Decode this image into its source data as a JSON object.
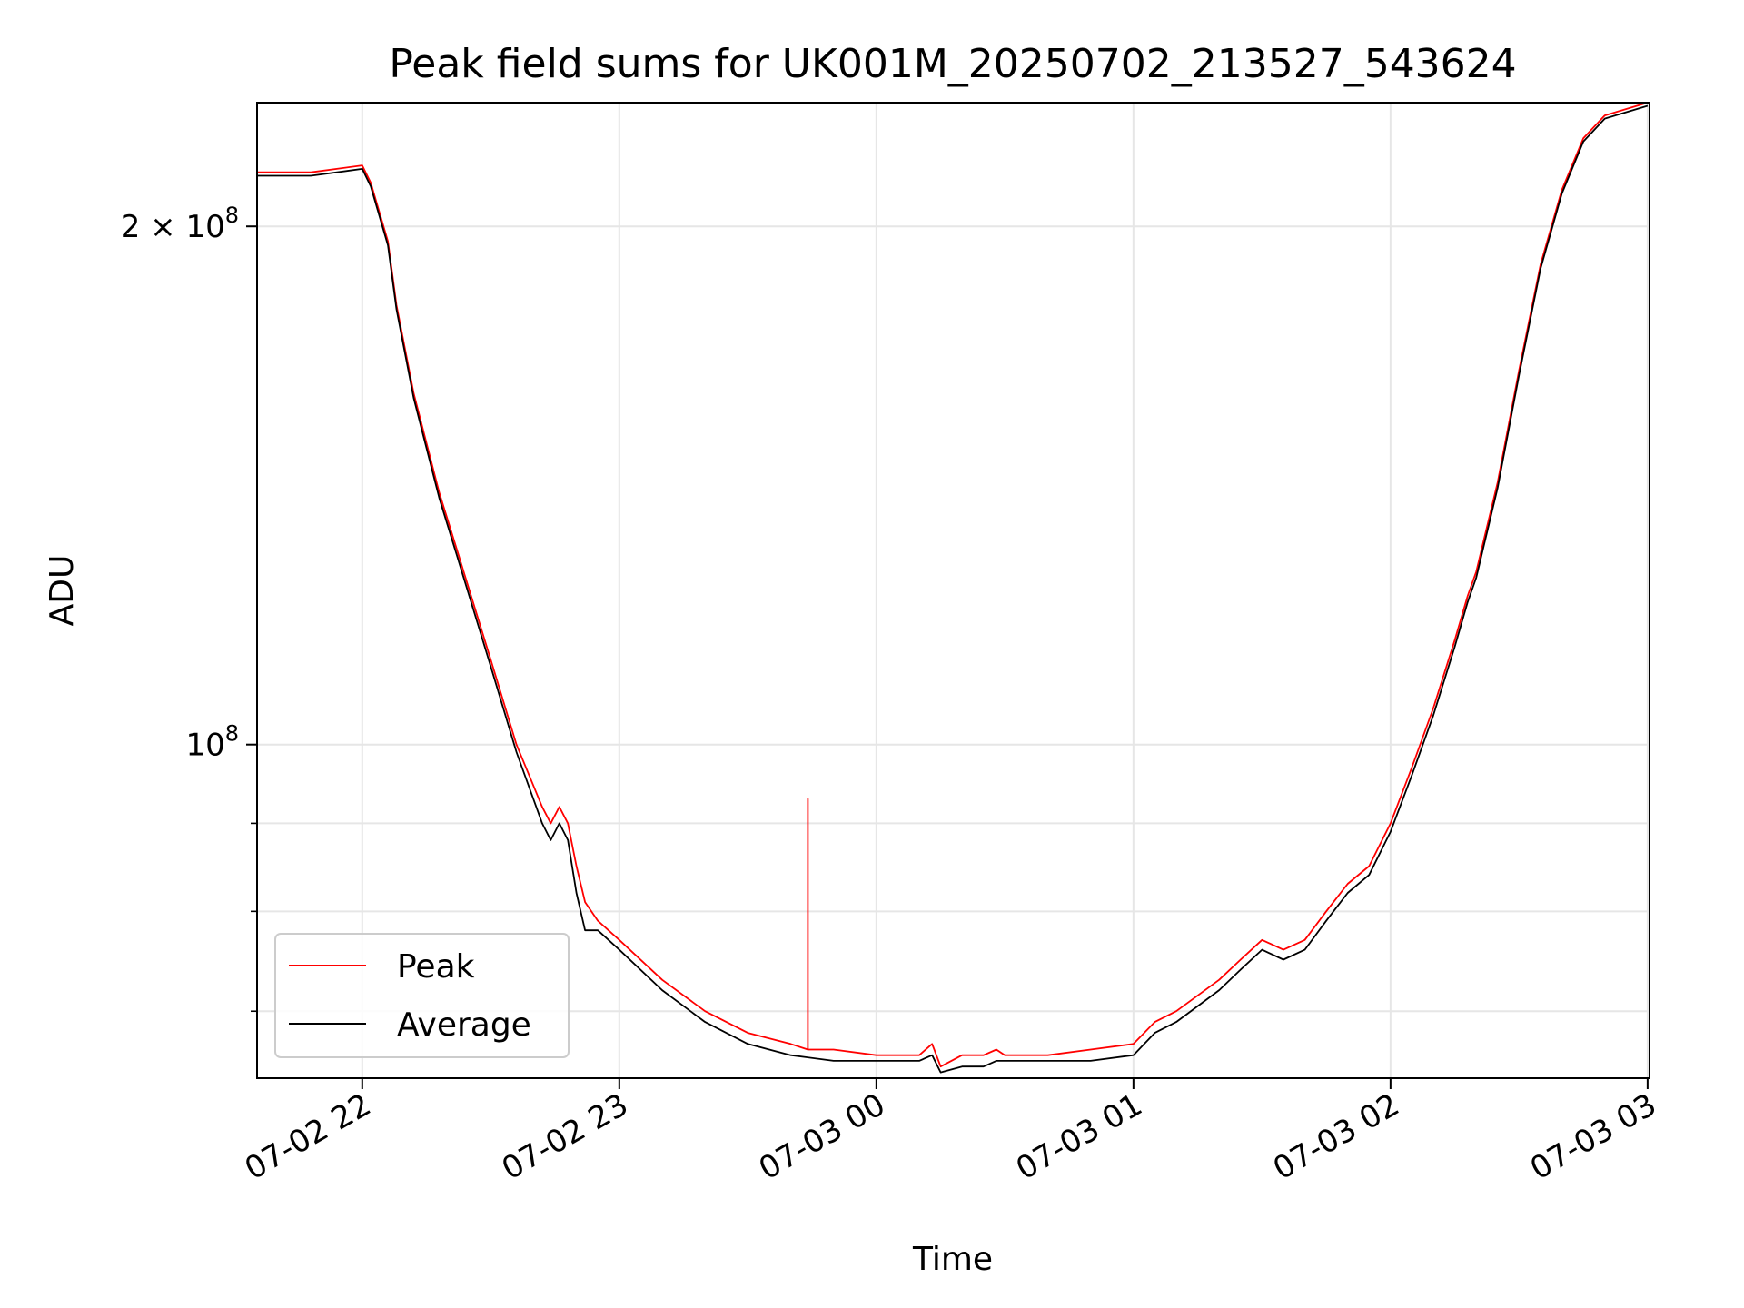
{
  "chart_data": {
    "type": "line",
    "title": "Peak field sums for UK001M_20250702_213527_543624",
    "xlabel": "Time",
    "ylabel": "ADU",
    "y_scale": "log",
    "xlim": [
      "2025-07-02 21:35:27",
      "2025-07-03 03:00:27"
    ],
    "ylim": [
      64000000,
      236000000
    ],
    "grid": true,
    "legend_position": "lower-left",
    "x_ticks": [
      {
        "time": "2025-07-02 22:00",
        "label": "07-02 22"
      },
      {
        "time": "2025-07-02 23:00",
        "label": "07-02 23"
      },
      {
        "time": "2025-07-03 00:00",
        "label": "07-03 00"
      },
      {
        "time": "2025-07-03 01:00",
        "label": "07-03 01"
      },
      {
        "time": "2025-07-03 02:00",
        "label": "07-03 02"
      },
      {
        "time": "2025-07-03 03:00",
        "label": "07-03 03"
      }
    ],
    "y_major_ticks": [
      {
        "value": 100000000,
        "label_base": "10",
        "label_exp": "8"
      },
      {
        "value": 200000000,
        "label_base": "2 × 10",
        "label_exp": "8"
      }
    ],
    "y_minor_ticks": [
      70000000,
      80000000,
      90000000
    ],
    "series": [
      {
        "name": "Peak",
        "color": "#ff0000",
        "x": [
          "2025-07-02 21:35",
          "2025-07-02 21:48",
          "2025-07-02 22:00",
          "2025-07-02 22:02",
          "2025-07-02 22:06",
          "2025-07-02 22:08",
          "2025-07-02 22:12",
          "2025-07-02 22:18",
          "2025-07-02 22:22",
          "2025-07-02 22:30",
          "2025-07-02 22:36",
          "2025-07-02 22:42",
          "2025-07-02 22:44",
          "2025-07-02 22:46",
          "2025-07-02 22:48",
          "2025-07-02 22:50",
          "2025-07-02 22:52",
          "2025-07-02 22:55",
          "2025-07-02 23:00",
          "2025-07-02 23:10",
          "2025-07-02 23:20",
          "2025-07-02 23:30",
          "2025-07-02 23:40",
          "2025-07-02 23:44",
          "2025-07-02 23:44",
          "2025-07-02 23:44",
          "2025-07-02 23:50",
          "2025-07-03 00:00",
          "2025-07-03 00:10",
          "2025-07-03 00:13",
          "2025-07-03 00:15",
          "2025-07-03 00:20",
          "2025-07-03 00:25",
          "2025-07-03 00:28",
          "2025-07-03 00:30",
          "2025-07-03 00:35",
          "2025-07-03 00:40",
          "2025-07-03 00:50",
          "2025-07-03 01:00",
          "2025-07-03 01:05",
          "2025-07-03 01:10",
          "2025-07-03 01:20",
          "2025-07-03 01:25",
          "2025-07-03 01:30",
          "2025-07-03 01:35",
          "2025-07-03 01:40",
          "2025-07-03 01:45",
          "2025-07-03 01:50",
          "2025-07-03 01:55",
          "2025-07-03 02:00",
          "2025-07-03 02:05",
          "2025-07-03 02:10",
          "2025-07-03 02:15",
          "2025-07-03 02:18",
          "2025-07-03 02:20",
          "2025-07-03 02:25",
          "2025-07-03 02:30",
          "2025-07-03 02:35",
          "2025-07-03 02:40",
          "2025-07-03 02:45",
          "2025-07-03 02:50",
          "2025-07-03 03:00"
        ],
        "y": [
          215000000,
          215000000,
          217000000,
          212000000,
          196000000,
          180000000,
          160000000,
          140000000,
          130000000,
          112000000,
          100000000,
          92000000,
          90000000,
          92000000,
          90000000,
          85000000,
          81000000,
          79000000,
          77000000,
          73000000,
          70000000,
          68000000,
          67000000,
          66500000,
          93000000,
          66500000,
          66500000,
          66000000,
          66000000,
          67000000,
          65000000,
          66000000,
          66000000,
          66500000,
          66000000,
          66000000,
          66000000,
          66500000,
          67000000,
          69000000,
          70000000,
          73000000,
          75000000,
          77000000,
          76000000,
          77000000,
          80000000,
          83000000,
          85000000,
          90000000,
          97000000,
          105000000,
          115000000,
          122000000,
          126000000,
          142000000,
          165000000,
          190000000,
          210000000,
          225000000,
          232000000,
          236000000
        ]
      },
      {
        "name": "Average",
        "color": "#000000",
        "x": [
          "2025-07-02 21:35",
          "2025-07-02 21:48",
          "2025-07-02 22:00",
          "2025-07-02 22:02",
          "2025-07-02 22:06",
          "2025-07-02 22:08",
          "2025-07-02 22:12",
          "2025-07-02 22:18",
          "2025-07-02 22:22",
          "2025-07-02 22:30",
          "2025-07-02 22:36",
          "2025-07-02 22:42",
          "2025-07-02 22:44",
          "2025-07-02 22:46",
          "2025-07-02 22:48",
          "2025-07-02 22:50",
          "2025-07-02 22:52",
          "2025-07-02 22:55",
          "2025-07-02 23:00",
          "2025-07-02 23:10",
          "2025-07-02 23:20",
          "2025-07-02 23:30",
          "2025-07-02 23:40",
          "2025-07-02 23:50",
          "2025-07-03 00:00",
          "2025-07-03 00:10",
          "2025-07-03 00:13",
          "2025-07-03 00:15",
          "2025-07-03 00:20",
          "2025-07-03 00:25",
          "2025-07-03 00:28",
          "2025-07-03 00:30",
          "2025-07-03 00:35",
          "2025-07-03 00:40",
          "2025-07-03 00:50",
          "2025-07-03 01:00",
          "2025-07-03 01:05",
          "2025-07-03 01:10",
          "2025-07-03 01:20",
          "2025-07-03 01:25",
          "2025-07-03 01:30",
          "2025-07-03 01:35",
          "2025-07-03 01:40",
          "2025-07-03 01:45",
          "2025-07-03 01:50",
          "2025-07-03 01:55",
          "2025-07-03 02:00",
          "2025-07-03 02:05",
          "2025-07-03 02:10",
          "2025-07-03 02:15",
          "2025-07-03 02:18",
          "2025-07-03 02:20",
          "2025-07-03 02:25",
          "2025-07-03 02:30",
          "2025-07-03 02:35",
          "2025-07-03 02:40",
          "2025-07-03 02:45",
          "2025-07-03 02:50",
          "2025-07-03 03:00"
        ],
        "y": [
          214000000,
          214000000,
          216000000,
          211000000,
          195000000,
          179000000,
          159000000,
          139000000,
          129000000,
          111000000,
          99000000,
          90000000,
          88000000,
          90000000,
          88000000,
          82000000,
          78000000,
          78000000,
          76000000,
          72000000,
          69000000,
          67000000,
          66000000,
          65500000,
          65500000,
          65500000,
          66000000,
          64500000,
          65000000,
          65000000,
          65500000,
          65500000,
          65500000,
          65500000,
          65500000,
          66000000,
          68000000,
          69000000,
          72000000,
          74000000,
          76000000,
          75000000,
          76000000,
          79000000,
          82000000,
          84000000,
          89000000,
          96000000,
          104000000,
          114000000,
          121000000,
          125000000,
          141000000,
          164000000,
          189000000,
          209000000,
          224000000,
          231000000,
          235000000
        ]
      }
    ]
  }
}
